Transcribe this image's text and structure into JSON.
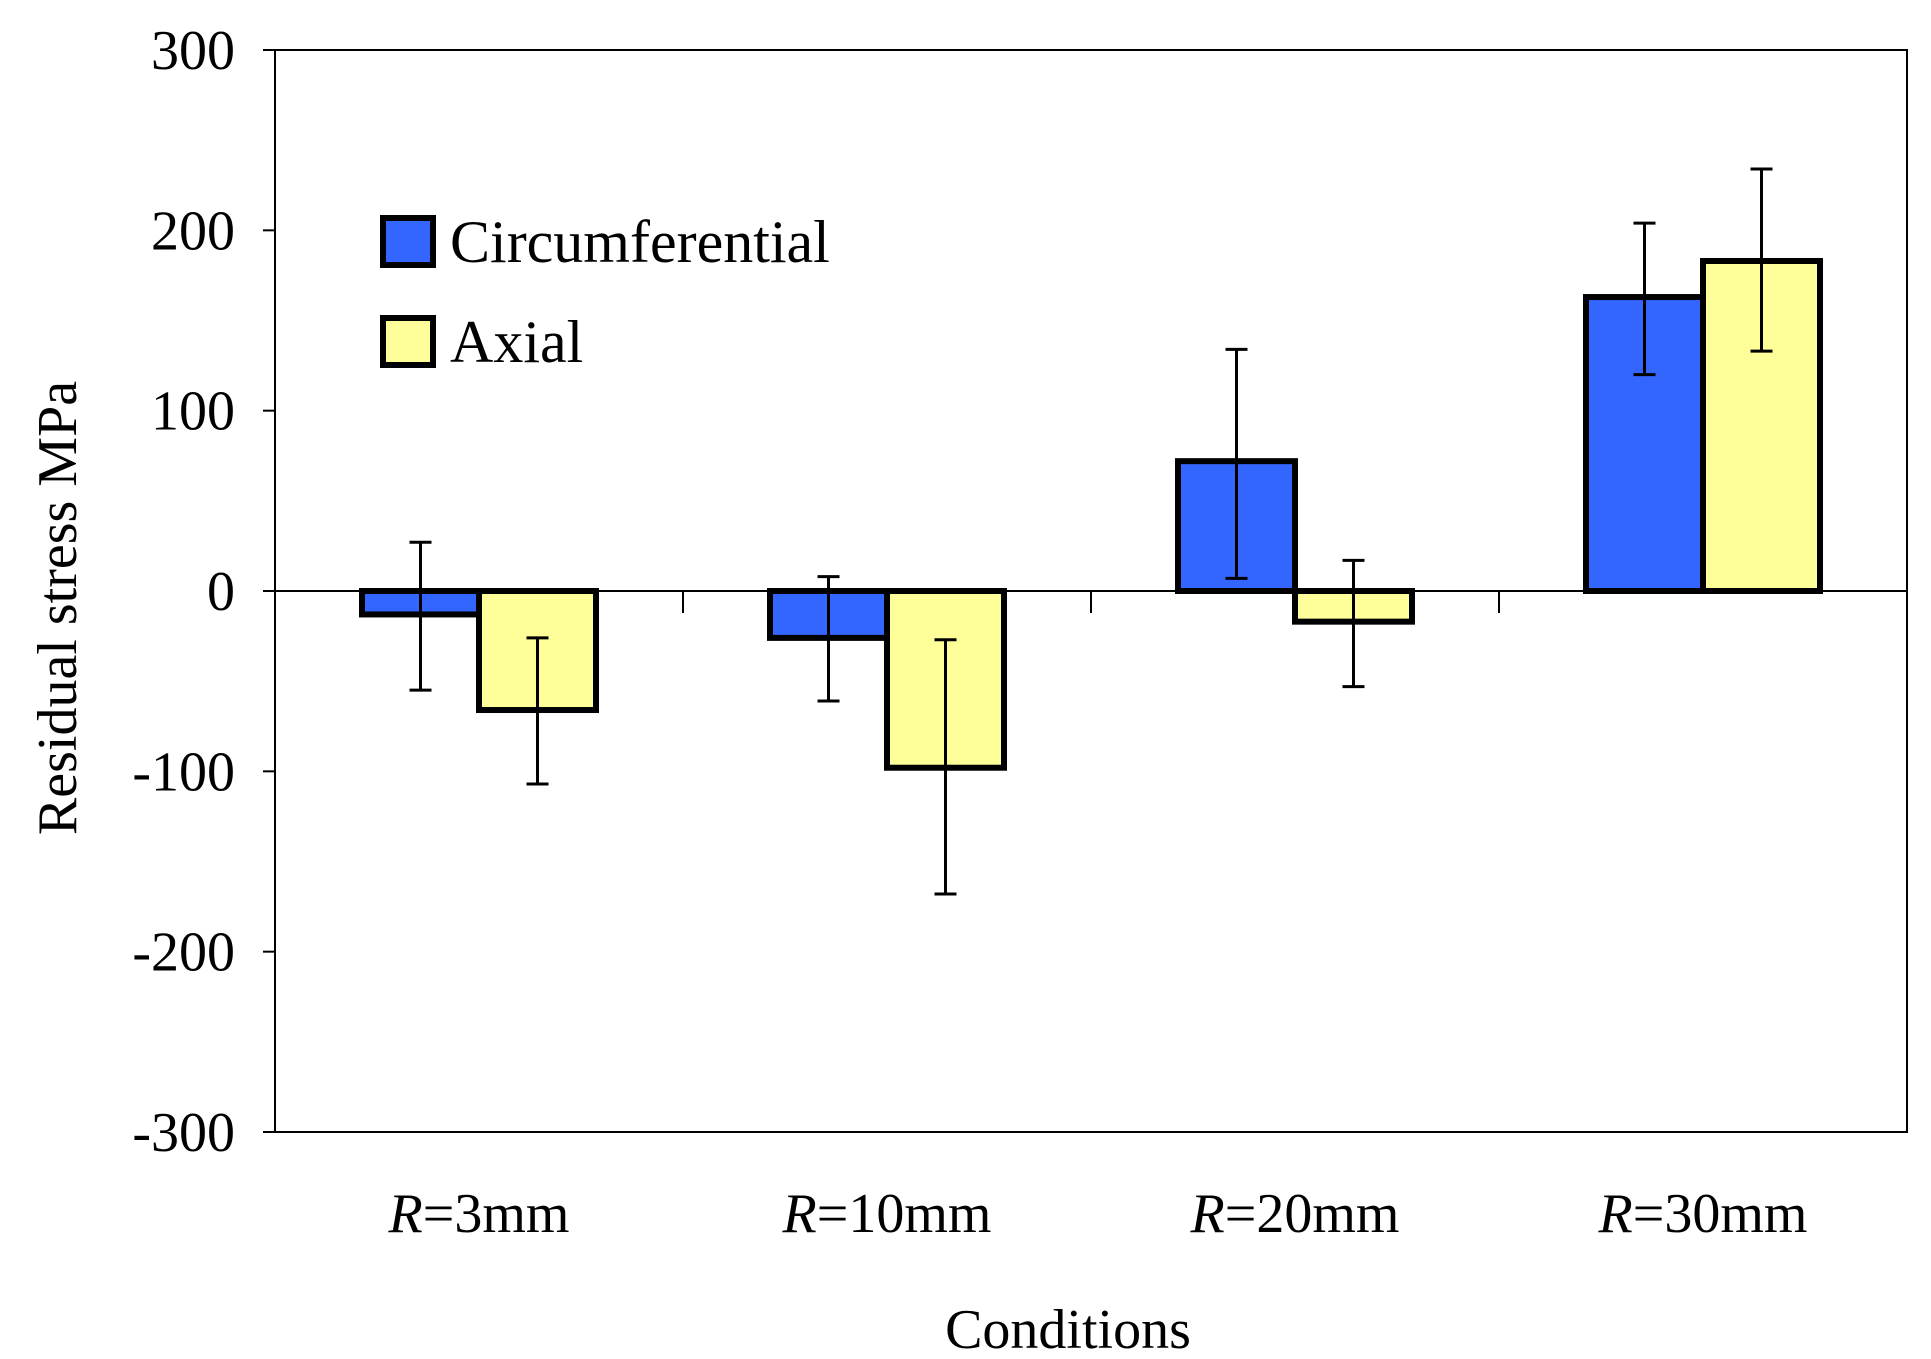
{
  "chart_data": {
    "type": "bar",
    "title": "",
    "xlabel": "Conditions",
    "ylabel": "Residual stress MPa",
    "ylim": [
      -300,
      300
    ],
    "yticks": [
      300,
      200,
      100,
      0,
      -100,
      -200,
      -300
    ],
    "grid": false,
    "legend_position": "top-left",
    "categories": [
      {
        "prefix": "R",
        "suffix": "=3mm"
      },
      {
        "prefix": "R",
        "suffix": "=10mm"
      },
      {
        "prefix": "R",
        "suffix": "=20mm"
      },
      {
        "prefix": "R",
        "suffix": "=30mm"
      }
    ],
    "series": [
      {
        "name": "Circumferential",
        "color": "#3366ff",
        "values": [
          -13,
          -26,
          72,
          163
        ],
        "error_low": [
          -55,
          -61,
          7,
          120
        ],
        "error_high": [
          27,
          8,
          134,
          204
        ]
      },
      {
        "name": "Axial",
        "color": "#ffff99",
        "values": [
          -66,
          -98,
          -17,
          183
        ],
        "error_low": [
          -107,
          -168,
          -53,
          133
        ],
        "error_high": [
          -26,
          -27,
          17,
          234
        ]
      }
    ]
  }
}
